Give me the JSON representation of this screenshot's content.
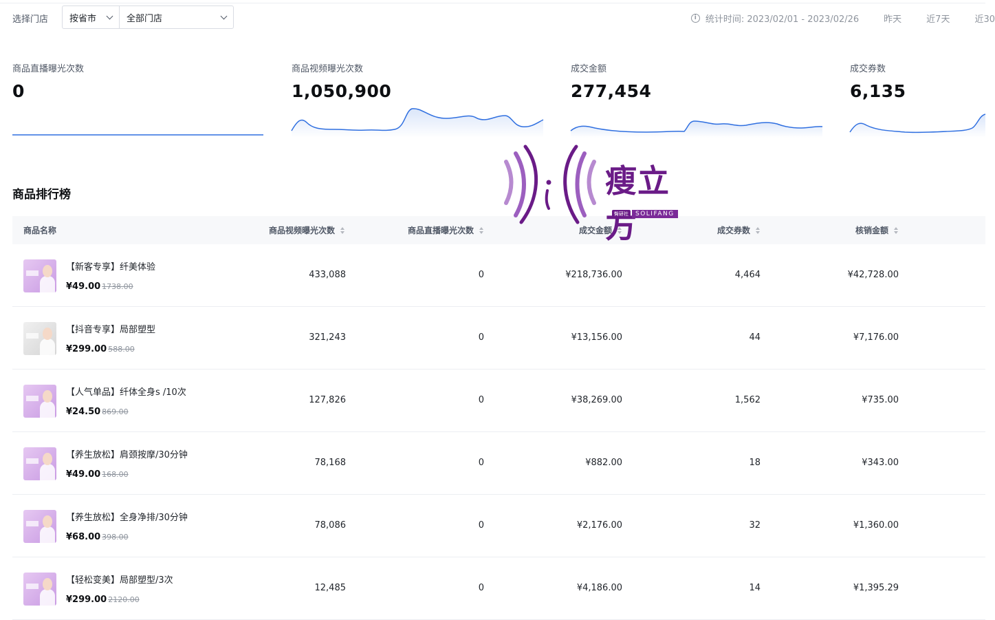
{
  "filter": {
    "label": "选择门店",
    "province_select": "按省市",
    "store_select": "全部门店"
  },
  "time": {
    "stat_text": "统计时间: 2023/02/01 - 2023/02/26",
    "ranges": [
      "昨天",
      "近7天",
      "近30"
    ]
  },
  "metrics": [
    {
      "label": "商品直播曝光次数",
      "value": "0"
    },
    {
      "label": "商品视频曝光次数",
      "value": "1,050,900"
    },
    {
      "label": "成交金额",
      "value": "277,454"
    },
    {
      "label": "成交券数",
      "value": "6,135"
    }
  ],
  "colors": {
    "spark_line": "#2f6fe0",
    "brand": "#6a1b87"
  },
  "ranking": {
    "title": "商品排行榜",
    "columns": [
      "商品名称",
      "商品视频曝光次数",
      "商品直播曝光次数",
      "成交金额",
      "成交券数",
      "核销金额"
    ],
    "rows": [
      {
        "name": "【新客专享】纤美体验",
        "price": "¥49.00",
        "original": "1738.00",
        "video": "433,088",
        "live": "0",
        "amount": "¥218,736.00",
        "coupons": "4,464",
        "redeemed": "¥42,728.00",
        "thumb": "purple"
      },
      {
        "name": "【抖音专享】局部塑型",
        "price": "¥299.00",
        "original": "588.00",
        "video": "321,243",
        "live": "0",
        "amount": "¥13,156.00",
        "coupons": "44",
        "redeemed": "¥7,176.00",
        "thumb": "gray"
      },
      {
        "name": "【人气单品】纤体全身s /10次",
        "price": "¥24.50",
        "original": "869.00",
        "video": "127,826",
        "live": "0",
        "amount": "¥38,269.00",
        "coupons": "1,562",
        "redeemed": "¥735.00",
        "thumb": "purple"
      },
      {
        "name": "【养生放松】肩颈按摩/30分钟",
        "price": "¥49.00",
        "original": "168.00",
        "video": "78,168",
        "live": "0",
        "amount": "¥882.00",
        "coupons": "18",
        "redeemed": "¥343.00",
        "thumb": "purple"
      },
      {
        "name": "【养生放松】全身净排/30分钟",
        "price": "¥68.00",
        "original": "398.00",
        "video": "78,086",
        "live": "0",
        "amount": "¥2,176.00",
        "coupons": "32",
        "redeemed": "¥1,360.00",
        "thumb": "purple"
      },
      {
        "name": "【轻松变美】局部塑型/3次",
        "price": "¥299.00",
        "original": "2120.00",
        "video": "12,485",
        "live": "0",
        "amount": "¥4,186.00",
        "coupons": "14",
        "redeemed": "¥1,395.29",
        "thumb": "purple"
      }
    ]
  },
  "brand": {
    "name_cn": "瘦立方",
    "tag": "臀研社",
    "name_en": "SOLIFANG"
  }
}
